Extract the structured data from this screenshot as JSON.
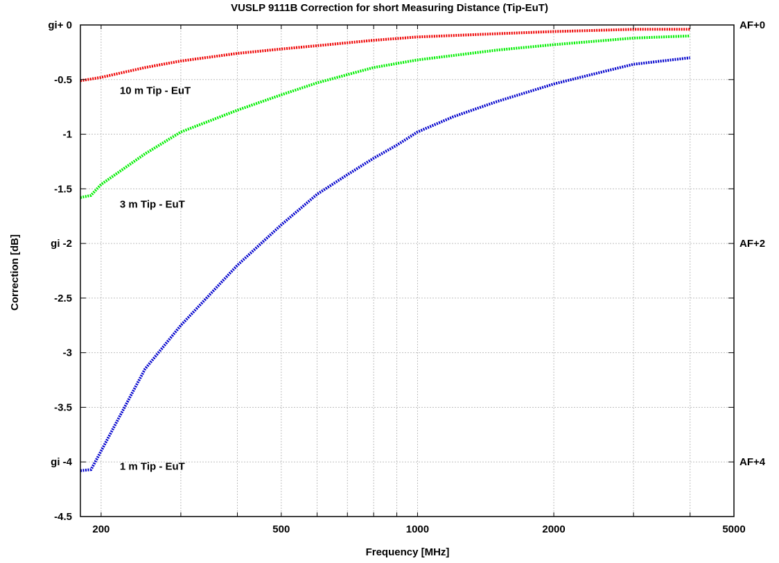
{
  "chart_data": {
    "type": "line",
    "title": "VUSLP 9111B Correction for short Measuring Distance (Tip-EuT)",
    "xlabel": "Frequency [MHz]",
    "ylabel": "Correction [dB]",
    "x_scale": "log",
    "xlim": [
      180,
      5000
    ],
    "ylim": [
      -4.5,
      0
    ],
    "grid": true,
    "x_ticks": [
      {
        "value": 200,
        "label": "200"
      },
      {
        "value": 500,
        "label": "500"
      },
      {
        "value": 1000,
        "label": "1000"
      },
      {
        "value": 2000,
        "label": "2000"
      },
      {
        "value": 5000,
        "label": "5000"
      }
    ],
    "y_ticks": [
      {
        "value": 0,
        "label": "gi+ 0"
      },
      {
        "value": -0.5,
        "label": "-0.5"
      },
      {
        "value": -1,
        "label": "-1"
      },
      {
        "value": -1.5,
        "label": "-1.5"
      },
      {
        "value": -2,
        "label": "gi -2"
      },
      {
        "value": -2.5,
        "label": "-2.5"
      },
      {
        "value": -3,
        "label": "-3"
      },
      {
        "value": -3.5,
        "label": "-3.5"
      },
      {
        "value": -4,
        "label": "gi -4"
      },
      {
        "value": -4.5,
        "label": "-4.5"
      }
    ],
    "y2_ticks": [
      {
        "value": 0,
        "label": "AF+0"
      },
      {
        "value": -2,
        "label": "AF+2"
      },
      {
        "value": -4,
        "label": "AF+4"
      }
    ],
    "series": [
      {
        "name": "10 m Tip - EuT",
        "color": "#ee0000",
        "label_at": {
          "x": 220,
          "y": -0.6
        },
        "x": [
          180,
          200,
          250,
          300,
          400,
          500,
          600,
          800,
          1000,
          1500,
          2000,
          3000,
          4000
        ],
        "y": [
          -0.51,
          -0.48,
          -0.39,
          -0.33,
          -0.26,
          -0.22,
          -0.19,
          -0.14,
          -0.11,
          -0.08,
          -0.06,
          -0.04,
          -0.04
        ]
      },
      {
        "name": "3 m Tip - EuT",
        "color": "#00ee00",
        "label_at": {
          "x": 220,
          "y": -1.64
        },
        "x": [
          180,
          190,
          200,
          250,
          300,
          400,
          500,
          600,
          800,
          1000,
          1500,
          2000,
          3000,
          4000
        ],
        "y": [
          -1.58,
          -1.56,
          -1.46,
          -1.18,
          -0.98,
          -0.78,
          -0.64,
          -0.53,
          -0.39,
          -0.32,
          -0.23,
          -0.18,
          -0.12,
          -0.1
        ]
      },
      {
        "name": "1 m Tip - EuT",
        "color": "#0000cc",
        "label_at": {
          "x": 220,
          "y": -4.04
        },
        "x": [
          180,
          190,
          200,
          250,
          300,
          400,
          500,
          600,
          700,
          800,
          900,
          1000,
          1200,
          1500,
          2000,
          2500,
          3000,
          4000
        ],
        "y": [
          -4.08,
          -4.07,
          -3.9,
          -3.15,
          -2.75,
          -2.2,
          -1.83,
          -1.55,
          -1.37,
          -1.22,
          -1.1,
          -0.98,
          -0.84,
          -0.7,
          -0.54,
          -0.44,
          -0.36,
          -0.3
        ]
      }
    ]
  }
}
